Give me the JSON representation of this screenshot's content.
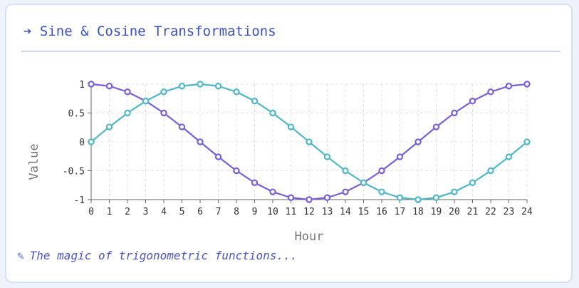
{
  "header": {
    "arrow": "➔",
    "title": "Sine & Cosine Transformations"
  },
  "caption": {
    "icon": "pencil-icon",
    "text": "The magic of trigonometric functions..."
  },
  "colors": {
    "series_a": "#7b5fd9",
    "series_b": "#4fb8c8",
    "title": "#3a4fc4",
    "grid": "#e4e4e4"
  },
  "chart_data": {
    "type": "line",
    "x": [
      0,
      1,
      2,
      3,
      4,
      5,
      6,
      7,
      8,
      9,
      10,
      11,
      12,
      13,
      14,
      15,
      16,
      17,
      18,
      19,
      20,
      21,
      22,
      23,
      24
    ],
    "xlabel": "Hour",
    "ylabel": "Value",
    "xlim": [
      0,
      24
    ],
    "ylim": [
      -1,
      1
    ],
    "yticks": [
      -1,
      -0.5,
      0,
      0.5,
      1
    ],
    "ytick_labels": [
      "-1",
      "-0.5",
      "0",
      "0.5",
      "1"
    ],
    "grid": true,
    "series": [
      {
        "color": "#7b5fd9",
        "values": [
          1,
          0.966,
          0.866,
          0.707,
          0.5,
          0.259,
          0,
          -0.259,
          -0.5,
          -0.707,
          -0.866,
          -0.966,
          -1,
          -0.966,
          -0.866,
          -0.707,
          -0.5,
          -0.259,
          0,
          0.259,
          0.5,
          0.707,
          0.866,
          0.966,
          1
        ]
      },
      {
        "color": "#4fb8c8",
        "values": [
          0,
          0.259,
          0.5,
          0.707,
          0.866,
          0.966,
          1,
          0.966,
          0.866,
          0.707,
          0.5,
          0.259,
          0,
          -0.259,
          -0.5,
          -0.707,
          -0.866,
          -0.966,
          -1,
          -0.966,
          -0.866,
          -0.707,
          -0.5,
          -0.259,
          0
        ]
      }
    ]
  }
}
